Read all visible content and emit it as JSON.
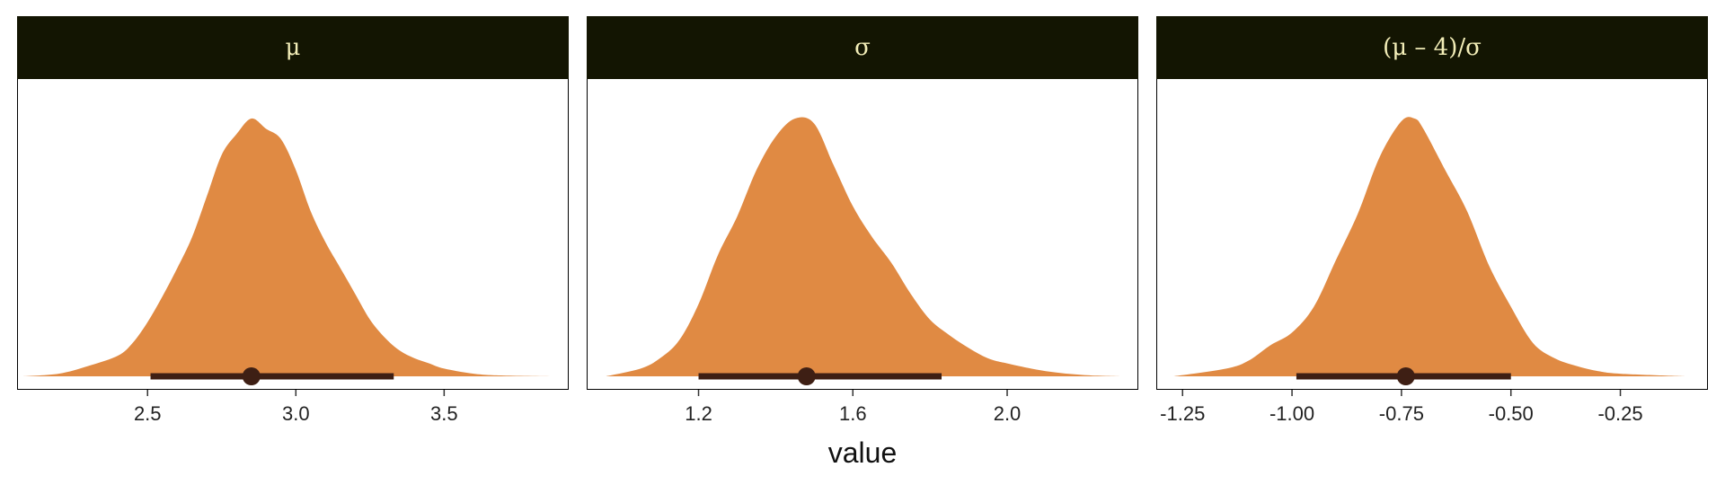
{
  "chart_data": [
    {
      "type": "area",
      "panel": "μ",
      "xlim": [
        2.06,
        3.92
      ],
      "ticks": [
        2.5,
        3.0,
        3.5
      ],
      "tick_labels": [
        "2.5",
        "3.0",
        "3.5"
      ],
      "density": {
        "x": [
          2.08,
          2.2,
          2.3,
          2.4,
          2.45,
          2.5,
          2.55,
          2.6,
          2.65,
          2.7,
          2.75,
          2.8,
          2.85,
          2.9,
          2.95,
          3.0,
          3.05,
          3.1,
          3.15,
          3.2,
          3.25,
          3.3,
          3.35,
          3.4,
          3.45,
          3.5,
          3.6,
          3.7,
          3.88
        ],
        "y": [
          0.0,
          0.01,
          0.04,
          0.08,
          0.13,
          0.21,
          0.31,
          0.42,
          0.54,
          0.7,
          0.86,
          0.94,
          1.0,
          0.96,
          0.92,
          0.8,
          0.64,
          0.52,
          0.42,
          0.32,
          0.22,
          0.15,
          0.1,
          0.07,
          0.05,
          0.03,
          0.01,
          0.003,
          0.0
        ]
      },
      "point": 2.85,
      "interval": [
        2.51,
        3.33
      ],
      "fill_color": "#E08A43",
      "interval_color": "#3E1F14"
    },
    {
      "type": "area",
      "panel": "σ",
      "xlim": [
        0.91,
        2.34
      ],
      "ticks": [
        1.2,
        1.6,
        2.0
      ],
      "tick_labels": [
        "1.2",
        "1.6",
        "2.0"
      ],
      "density": {
        "x": [
          0.96,
          1.05,
          1.1,
          1.15,
          1.2,
          1.25,
          1.3,
          1.35,
          1.4,
          1.45,
          1.5,
          1.55,
          1.6,
          1.65,
          1.7,
          1.75,
          1.8,
          1.85,
          1.9,
          1.95,
          2.0,
          2.1,
          2.2,
          2.3
        ],
        "y": [
          0.0,
          0.03,
          0.07,
          0.14,
          0.28,
          0.47,
          0.62,
          0.8,
          0.93,
          1.0,
          0.98,
          0.82,
          0.66,
          0.54,
          0.44,
          0.32,
          0.22,
          0.16,
          0.11,
          0.07,
          0.05,
          0.02,
          0.005,
          0.0
        ]
      },
      "point": 1.48,
      "interval": [
        1.2,
        1.83
      ],
      "fill_color": "#E08A43",
      "interval_color": "#3E1F14"
    },
    {
      "type": "area",
      "panel": "(μ – 4)/σ",
      "xlim": [
        -1.31,
        -0.05
      ],
      "ticks": [
        -1.25,
        -1.0,
        -0.75,
        -0.5,
        -0.25
      ],
      "tick_labels": [
        "-1.25",
        "-1.00",
        "-0.75",
        "-0.50",
        "-0.25"
      ],
      "density": {
        "x": [
          -1.27,
          -1.15,
          -1.1,
          -1.05,
          -1.0,
          -0.95,
          -0.9,
          -0.85,
          -0.8,
          -0.75,
          -0.72,
          -0.7,
          -0.65,
          -0.6,
          -0.55,
          -0.5,
          -0.45,
          -0.4,
          -0.35,
          -0.3,
          -0.25,
          -0.1
        ],
        "y": [
          0.0,
          0.03,
          0.06,
          0.12,
          0.17,
          0.27,
          0.45,
          0.63,
          0.85,
          0.99,
          1.0,
          0.96,
          0.8,
          0.64,
          0.43,
          0.27,
          0.13,
          0.07,
          0.04,
          0.02,
          0.01,
          0.0
        ]
      },
      "point": -0.74,
      "interval": [
        -0.99,
        -0.5
      ],
      "fill_color": "#E08A43",
      "interval_color": "#3E1F14"
    }
  ],
  "panels": [
    {
      "label": "μ"
    },
    {
      "label": "σ"
    },
    {
      "label": "(μ – 4)/σ"
    }
  ],
  "xlabel": "value"
}
